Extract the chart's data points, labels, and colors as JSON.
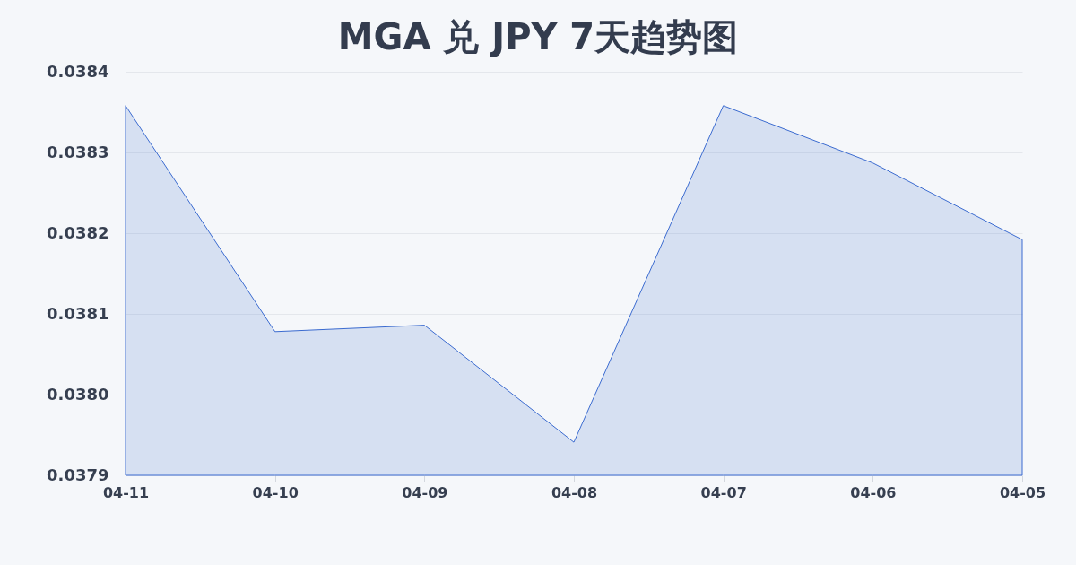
{
  "chart_data": {
    "type": "area",
    "title": "MGA 兑 JPY 7天趋势图",
    "categories": [
      "04-11",
      "04-10",
      "04-09",
      "04-08",
      "04-07",
      "04-06",
      "04-05"
    ],
    "series": [
      {
        "color": "#3b6bd0",
        "values": [
          0.038358,
          0.038078,
          0.038086,
          0.037941,
          0.038358,
          0.038287,
          0.038192
        ]
      }
    ],
    "ylim": [
      0.0379,
      0.0384
    ],
    "yticks": [
      0.0379,
      {
        "value": 0.038,
        "label": "0.0380"
      },
      0.0381,
      0.0382,
      0.0383,
      0.0384
    ],
    "grid": "y"
  }
}
